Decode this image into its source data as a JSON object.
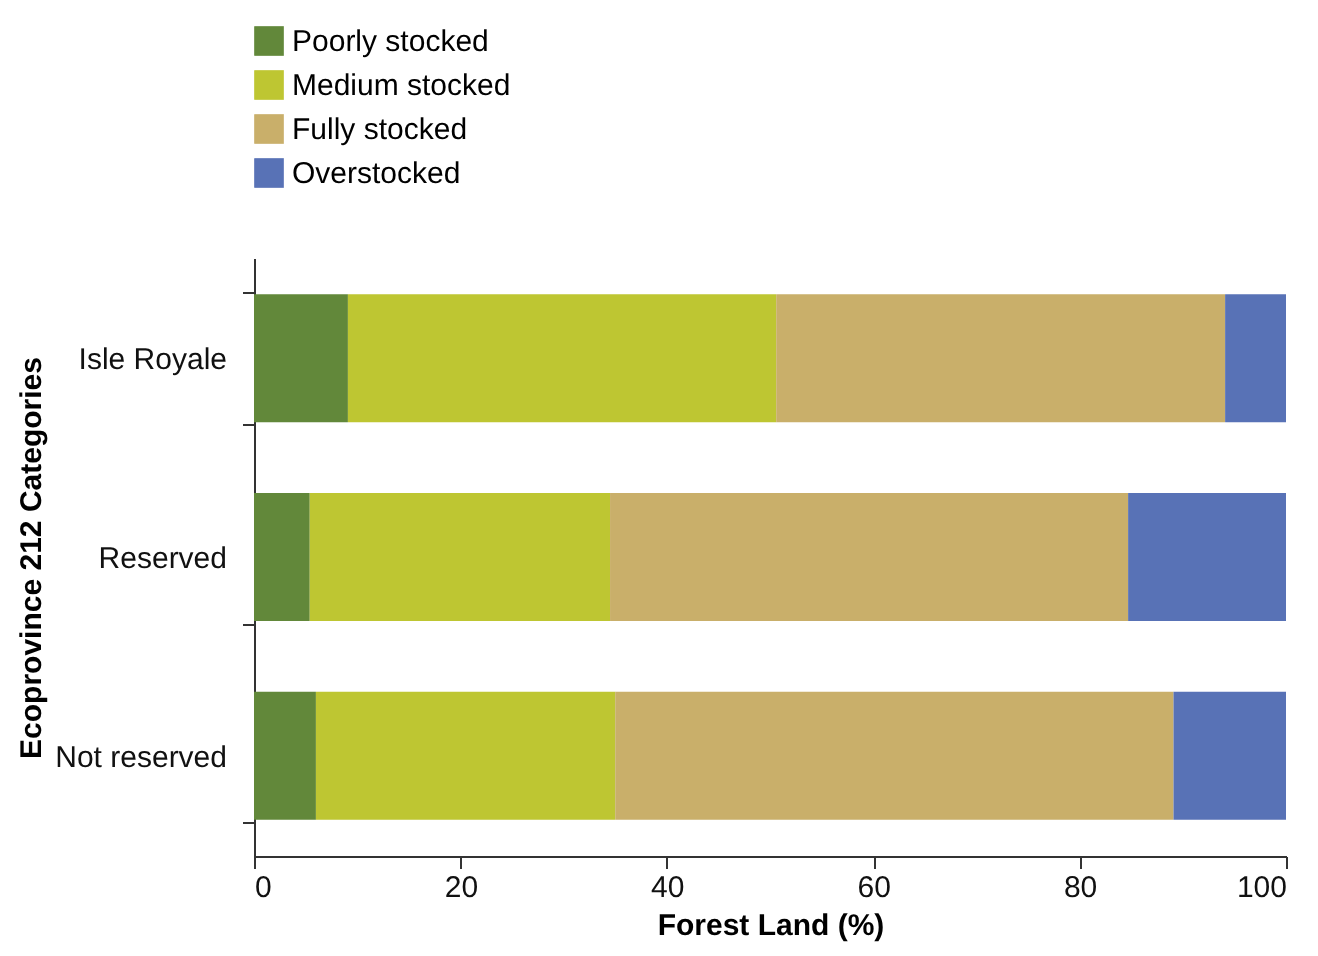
{
  "chart_data": {
    "type": "bar",
    "orientation": "horizontal",
    "stacked": true,
    "categories": [
      "Isle Royale",
      "Reserved",
      "Not reserved"
    ],
    "series": [
      {
        "name": "Poorly stocked",
        "color": "#62883a",
        "values": [
          9.1,
          5.4,
          6.0
        ]
      },
      {
        "name": "Medium stocked",
        "color": "#bec632",
        "values": [
          41.5,
          29.1,
          29.0
        ]
      },
      {
        "name": "Fully stocked",
        "color": "#c9af6a",
        "values": [
          43.5,
          50.2,
          54.1
        ]
      },
      {
        "name": "Overstocked",
        "color": "#5872b6",
        "values": [
          5.9,
          15.3,
          10.9
        ]
      }
    ],
    "xlabel": "Forest Land (%)",
    "ylabel": "Ecoprovince 212 Categories",
    "xlim": [
      0,
      100
    ],
    "xticks": [
      0,
      20,
      40,
      60,
      80,
      100
    ],
    "grid": false,
    "legend": "top left"
  }
}
